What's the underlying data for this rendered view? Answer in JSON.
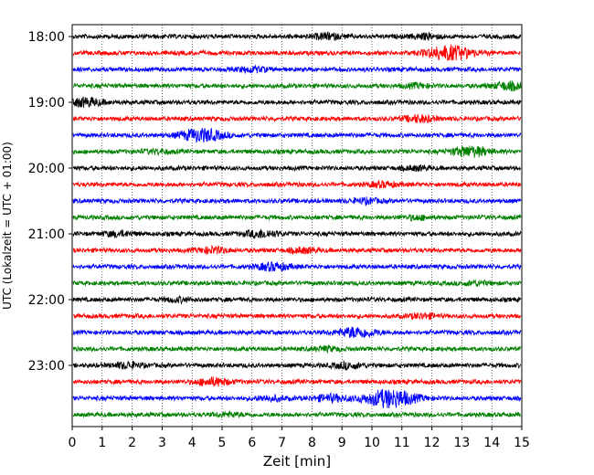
{
  "chart_data": {
    "type": "line",
    "title": "",
    "xlabel": "Zeit  [min]",
    "ylabel": "UTC (Lokalzeit = UTC + 01:00)",
    "xlim": [
      0,
      15
    ],
    "x_ticks": [
      0,
      1,
      2,
      3,
      4,
      5,
      6,
      7,
      8,
      9,
      10,
      11,
      12,
      13,
      14,
      15
    ],
    "grid": "vertical-dotted",
    "y_ticks": [
      {
        "row": 0,
        "label": "18:00"
      },
      {
        "row": 4,
        "label": "19:00"
      },
      {
        "row": 8,
        "label": "20:00"
      },
      {
        "row": 12,
        "label": "21:00"
      },
      {
        "row": 16,
        "label": "22:00"
      },
      {
        "row": 20,
        "label": "23:00"
      }
    ],
    "row_count": 24,
    "row_minutes": 15,
    "trace_colors": [
      "#000000",
      "#ff0000",
      "#0000ff",
      "#008000"
    ],
    "series": [
      {
        "start": "18:00",
        "color": "#000000",
        "events": [
          {
            "t": 8.5,
            "amp": 0.3
          },
          {
            "t": 11.8,
            "amp": 0.25
          }
        ]
      },
      {
        "start": "18:15",
        "color": "#ff0000",
        "events": [
          {
            "t": 12.6,
            "amp": 0.8
          }
        ]
      },
      {
        "start": "18:30",
        "color": "#0000ff",
        "events": [
          {
            "t": 6.0,
            "amp": 0.25
          }
        ]
      },
      {
        "start": "18:45",
        "color": "#008000",
        "events": [
          {
            "t": 14.6,
            "amp": 0.4
          },
          {
            "t": 11.5,
            "amp": 0.2
          }
        ]
      },
      {
        "start": "19:00",
        "color": "#000000",
        "events": [
          {
            "t": 0.4,
            "amp": 0.45
          }
        ]
      },
      {
        "start": "19:15",
        "color": "#ff0000",
        "events": [
          {
            "t": 11.6,
            "amp": 0.35
          }
        ]
      },
      {
        "start": "19:30",
        "color": "#0000ff",
        "events": [
          {
            "t": 4.3,
            "amp": 0.7
          }
        ]
      },
      {
        "start": "19:45",
        "color": "#008000",
        "events": [
          {
            "t": 13.3,
            "amp": 0.55
          },
          {
            "t": 2.8,
            "amp": 0.2
          }
        ]
      },
      {
        "start": "20:00",
        "color": "#000000",
        "events": [
          {
            "t": 11.5,
            "amp": 0.2
          }
        ]
      },
      {
        "start": "20:15",
        "color": "#ff0000",
        "events": [
          {
            "t": 10.4,
            "amp": 0.25
          }
        ]
      },
      {
        "start": "20:30",
        "color": "#0000ff",
        "events": [
          {
            "t": 9.8,
            "amp": 0.25
          }
        ]
      },
      {
        "start": "20:45",
        "color": "#008000",
        "events": [
          {
            "t": 11.5,
            "amp": 0.2
          }
        ]
      },
      {
        "start": "21:00",
        "color": "#000000",
        "events": [
          {
            "t": 6.3,
            "amp": 0.4
          },
          {
            "t": 1.5,
            "amp": 0.25
          }
        ]
      },
      {
        "start": "21:15",
        "color": "#ff0000",
        "events": [
          {
            "t": 4.7,
            "amp": 0.3
          },
          {
            "t": 7.7,
            "amp": 0.25
          }
        ]
      },
      {
        "start": "21:30",
        "color": "#0000ff",
        "events": [
          {
            "t": 6.7,
            "amp": 0.4
          }
        ]
      },
      {
        "start": "21:45",
        "color": "#008000",
        "events": [
          {
            "t": 13.5,
            "amp": 0.2
          }
        ]
      },
      {
        "start": "22:00",
        "color": "#000000",
        "events": [
          {
            "t": 3.5,
            "amp": 0.2
          }
        ]
      },
      {
        "start": "22:15",
        "color": "#ff0000",
        "events": [
          {
            "t": 11.7,
            "amp": 0.25
          }
        ]
      },
      {
        "start": "22:30",
        "color": "#0000ff",
        "events": [
          {
            "t": 9.5,
            "amp": 0.55
          }
        ]
      },
      {
        "start": "22:45",
        "color": "#008000",
        "events": [
          {
            "t": 8.5,
            "amp": 0.2
          }
        ]
      },
      {
        "start": "23:00",
        "color": "#000000",
        "events": [
          {
            "t": 1.8,
            "amp": 0.3
          },
          {
            "t": 9.2,
            "amp": 0.3
          }
        ]
      },
      {
        "start": "23:15",
        "color": "#ff0000",
        "events": [
          {
            "t": 4.7,
            "amp": 0.4
          }
        ]
      },
      {
        "start": "23:30",
        "color": "#0000ff",
        "events": [
          {
            "t": 10.6,
            "amp": 1.0
          },
          {
            "t": 8.6,
            "amp": 0.35
          },
          {
            "t": 6.6,
            "amp": 0.25
          }
        ]
      },
      {
        "start": "23:45",
        "color": "#008000",
        "events": [
          {
            "t": 5.2,
            "amp": 0.2
          }
        ]
      }
    ]
  }
}
